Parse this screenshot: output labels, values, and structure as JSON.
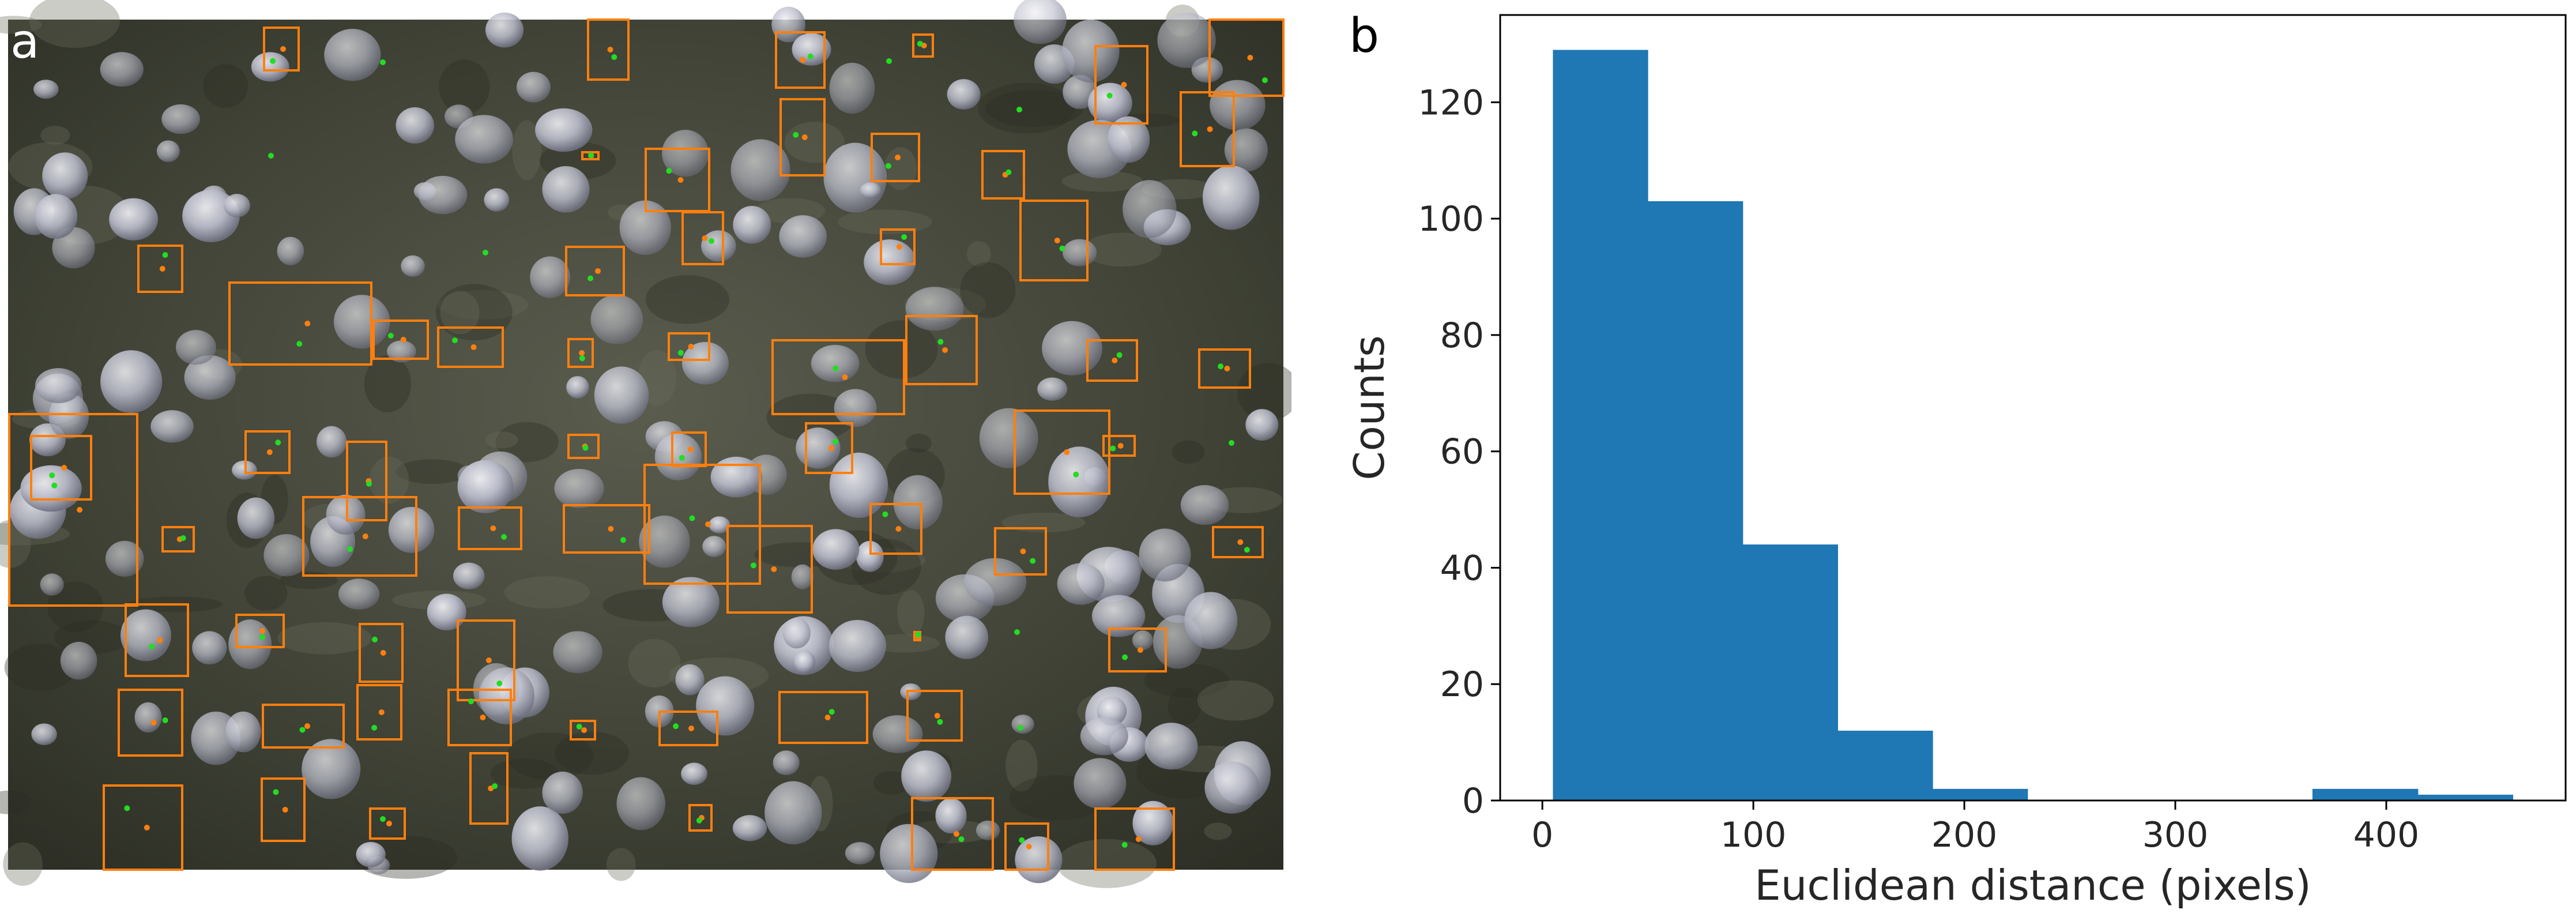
{
  "panels": {
    "photo": {
      "letter": "a"
    },
    "chart": {
      "letter": "b"
    }
  },
  "colors": {
    "bar_fill": "#1f77b4",
    "box_stroke": "#ff7f0e",
    "marker_green": "#22dd22",
    "marker_orange": "#ff7f0e",
    "seafloor_dark": "#3c3f32",
    "organism_light": "#c9cad4"
  },
  "chart_data": {
    "type": "bar",
    "title": "",
    "xlabel": "Euclidean distance (pixels)",
    "ylabel": "Counts",
    "xlim": [
      -20,
      485
    ],
    "ylim": [
      0,
      135
    ],
    "xticks": [
      0,
      100,
      200,
      300,
      400
    ],
    "yticks": [
      0,
      20,
      40,
      60,
      80,
      100,
      120
    ],
    "grid": false,
    "bins": [
      {
        "x0": 5,
        "x1": 50,
        "value": 129
      },
      {
        "x0": 50,
        "x1": 95,
        "value": 103
      },
      {
        "x0": 95,
        "x1": 140,
        "value": 44
      },
      {
        "x0": 140,
        "x1": 185,
        "value": 12
      },
      {
        "x0": 185,
        "x1": 230,
        "value": 2
      },
      {
        "x0": 230,
        "x1": 275,
        "value": 0
      },
      {
        "x0": 275,
        "x1": 320,
        "value": 0
      },
      {
        "x0": 320,
        "x1": 365,
        "value": 0
      },
      {
        "x0": 365,
        "x1": 415,
        "value": 2
      },
      {
        "x0": 415,
        "x1": 460,
        "value": 1
      }
    ]
  }
}
